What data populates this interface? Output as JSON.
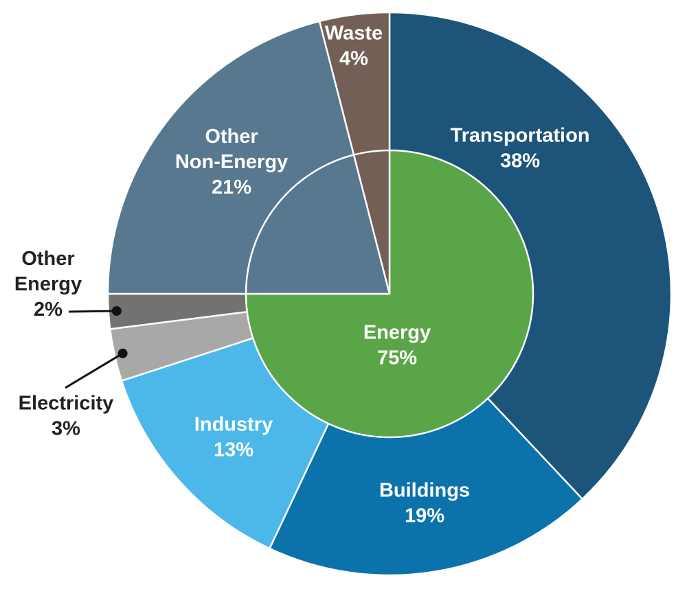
{
  "chart_data": {
    "type": "pie",
    "subtype": "nested-donut",
    "title": "",
    "legend": "none",
    "outer_ring": [
      {
        "name": "Transportation",
        "label": "Transportation",
        "value_label": "38%",
        "value": 38,
        "color": "#1d5479",
        "text_color": "#ffffff"
      },
      {
        "name": "Buildings",
        "label": "Buildings",
        "value_label": "19%",
        "value": 19,
        "color": "#0b72ab",
        "text_color": "#ffffff"
      },
      {
        "name": "Industry",
        "label": "Industry",
        "value_label": "13%",
        "value": 13,
        "color": "#4bb8e9",
        "text_color": "#ffffff"
      },
      {
        "name": "Electricity",
        "label": "Electricity",
        "value_label": "3%",
        "value": 3,
        "color": "#a8a8a8",
        "text_color": "#222222"
      },
      {
        "name": "Other Energy",
        "label": "Other Energy",
        "value_label": "2%",
        "value": 2,
        "color": "#727272",
        "text_color": "#222222"
      },
      {
        "name": "Other Non-Energy",
        "label": "Other Non-Energy",
        "value_label": "21%",
        "value": 21,
        "color": "#57788f",
        "text_color": "#ffffff"
      },
      {
        "name": "Waste",
        "label": "Waste",
        "value_label": "4%",
        "value": 4,
        "color": "#735f56",
        "text_color": "#ffffff"
      }
    ],
    "inner_ring": [
      {
        "name": "Energy",
        "label": "Energy",
        "value_label": "75%",
        "value": 75,
        "color": "#5aa548",
        "text_color": "#ffffff"
      },
      {
        "name": "Other Non-Energy",
        "label": "",
        "value_label": "",
        "value": 21,
        "color": "#57788f",
        "text_color": "#ffffff"
      },
      {
        "name": "Waste",
        "label": "",
        "value_label": "",
        "value": 4,
        "color": "#735f56",
        "text_color": "#ffffff"
      }
    ]
  }
}
